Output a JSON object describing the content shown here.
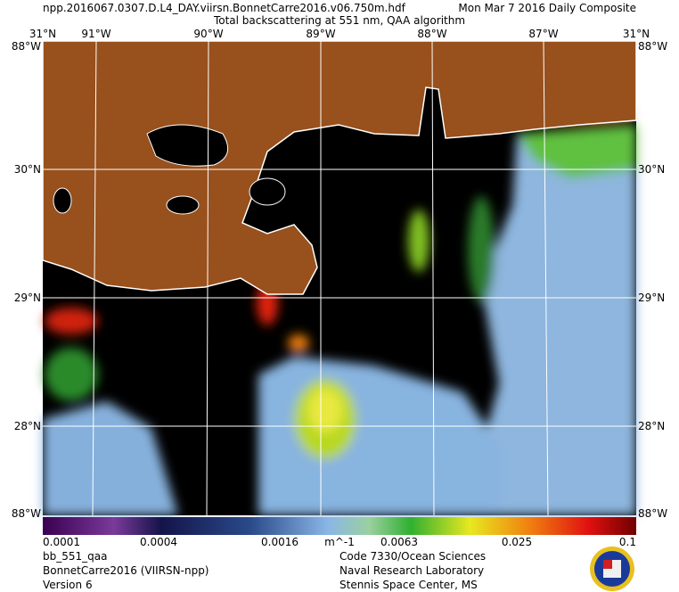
{
  "header": {
    "file": "npp.2016067.0307.D.L4_DAY.viirsn.BonnetCarre2016.v06.750m.hdf",
    "date": "Mon Mar  7 2016 Daily Composite",
    "title": "Total backscattering at 551 nm, QAA algorithm"
  },
  "map": {
    "top_labels": [
      "31°N",
      "91°W",
      "90°W",
      "89°W",
      "88°W",
      "87°W",
      "31°N"
    ],
    "left_labels": [
      "88°W",
      "30°N",
      "29°N",
      "28°N",
      "88°W"
    ],
    "right_labels": [
      "88°W",
      "30°N",
      "29°N",
      "28°N",
      "88°W"
    ]
  },
  "colorbar": {
    "labels": [
      "0.0001",
      "0.0004",
      "0.0016",
      "0.0063",
      "0.025",
      "0.1"
    ],
    "unit": "m^-1"
  },
  "footer": {
    "left": [
      "bb_551_qaa",
      "BonnetCarre2016 (VIIRSN-npp)",
      "Version 6"
    ],
    "right": [
      "Code 7330/Ocean Sciences",
      "Naval Research Laboratory",
      "Stennis Space Center, MS"
    ]
  }
}
